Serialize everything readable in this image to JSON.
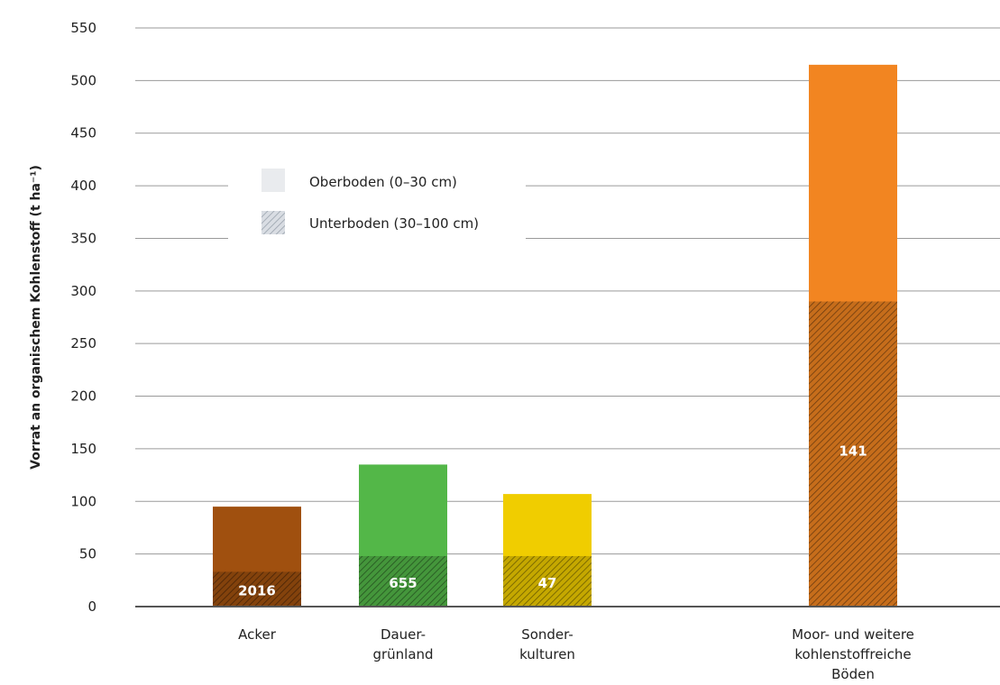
{
  "chart_data": {
    "type": "bar",
    "stacked": true,
    "ylabel": "Vorrat an organischem Kohlenstoff (t ha⁻¹)",
    "ylim": [
      0,
      550
    ],
    "yticks": [
      0,
      50,
      100,
      150,
      200,
      250,
      300,
      350,
      400,
      450,
      500,
      550
    ],
    "grid": true,
    "legend_position": "top-left",
    "categories": [
      [
        "Acker"
      ],
      [
        "Dauer-",
        "grünland"
      ],
      [
        "Sonder-",
        "kulturen"
      ],
      [
        "Moor- und weitere",
        "kohlenstoffreiche",
        "Böden"
      ]
    ],
    "series": [
      {
        "name": "Unterboden (30–100 cm)",
        "pattern": "hatched",
        "values": [
          33,
          48,
          48,
          290
        ]
      },
      {
        "name": "Oberboden (0–30 cm)",
        "pattern": "solid",
        "values": [
          62,
          87,
          59,
          225
        ]
      }
    ],
    "colors": [
      "#a0500f",
      "#53b748",
      "#f0cd00",
      "#f28521"
    ],
    "data_labels": [
      "2016",
      "655",
      "47",
      "141"
    ]
  }
}
